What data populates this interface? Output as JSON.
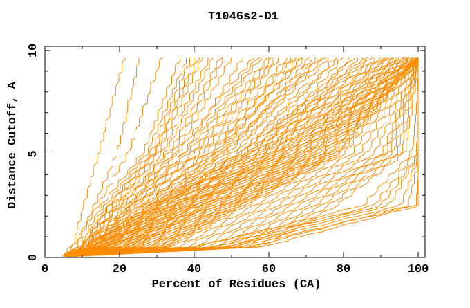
{
  "window": {
    "background": "#ffffff",
    "frame_color": "#000000",
    "text_color": "#000000"
  },
  "chart_data": {
    "type": "line",
    "title": "T1046s2-D1",
    "xlabel": "Percent of Residues (CA)",
    "ylabel": "Distance Cutoff, A",
    "xlim": [
      0,
      101.85
    ],
    "ylim": [
      0,
      10.2
    ],
    "x_ticks_major": [
      0,
      20,
      40,
      60,
      80,
      100
    ],
    "x_ticks_minor": [
      10,
      30,
      50,
      70,
      90
    ],
    "y_ticks_major": [
      0,
      5,
      10
    ],
    "y_ticks_minor": [
      1,
      2,
      3,
      4,
      6,
      7,
      8,
      9
    ],
    "grid": false,
    "legend": "none",
    "line_color": "#ff8c00",
    "curve_count": 96,
    "max_cutoff_sampled": 9.7,
    "curve_anchor_cutoffs": [
      0.05,
      0.5,
      2.5,
      5,
      9.7
    ],
    "curves": [
      [
        4.5,
        7,
        10,
        14,
        21
      ],
      [
        5,
        8,
        13,
        19,
        25
      ],
      [
        4.5,
        7.5,
        14,
        22,
        31
      ],
      [
        5,
        9,
        15,
        26,
        36
      ],
      [
        5.5,
        10,
        17,
        28,
        39
      ],
      [
        6,
        11,
        19,
        30,
        42
      ],
      [
        5,
        9.5,
        16,
        27,
        38
      ],
      [
        6,
        12,
        21,
        32,
        45
      ],
      [
        5.5,
        10.5,
        18,
        29,
        41
      ],
      [
        6.5,
        13,
        23,
        34,
        48
      ],
      [
        5,
        11,
        20,
        33,
        47
      ],
      [
        6,
        12.5,
        22,
        35,
        50
      ],
      [
        5.5,
        11.5,
        19,
        31,
        44
      ],
      [
        6,
        13,
        24,
        37,
        53
      ],
      [
        5,
        10,
        17,
        29,
        40
      ],
      [
        5,
        10,
        20,
        35,
        56
      ],
      [
        5.5,
        12,
        23,
        38,
        58
      ],
      [
        6,
        14,
        26,
        40,
        61
      ],
      [
        5,
        11,
        22,
        37,
        57
      ],
      [
        6.5,
        15,
        28,
        42,
        63
      ],
      [
        5.5,
        13,
        25,
        39,
        60
      ],
      [
        6,
        16,
        30,
        45,
        66
      ],
      [
        5,
        12,
        24,
        41,
        62
      ],
      [
        7,
        17,
        32,
        47,
        68
      ],
      [
        5.5,
        14,
        27,
        43,
        65
      ],
      [
        6,
        18,
        34,
        49,
        71
      ],
      [
        5,
        13,
        26,
        44,
        67
      ],
      [
        6.5,
        19,
        35,
        51,
        73
      ],
      [
        5.5,
        15,
        29,
        46,
        69
      ],
      [
        6,
        20,
        37,
        53,
        76
      ],
      [
        5,
        14,
        28,
        45,
        70
      ],
      [
        7,
        21,
        39,
        55,
        78
      ],
      [
        5.5,
        16,
        31,
        48,
        72
      ],
      [
        6,
        22,
        40,
        57,
        80
      ],
      [
        5,
        15,
        30,
        47,
        74
      ],
      [
        6.5,
        23,
        42,
        59,
        82
      ],
      [
        5.5,
        17,
        33,
        50,
        75
      ],
      [
        6,
        24,
        43,
        61,
        84
      ],
      [
        5,
        16,
        32,
        52,
        79
      ],
      [
        6.5,
        18,
        36,
        54,
        83
      ],
      [
        5,
        10,
        28,
        52,
        86
      ],
      [
        5.5,
        12,
        30,
        55,
        88
      ],
      [
        6,
        14,
        33,
        58,
        90
      ],
      [
        5,
        11,
        29,
        54,
        87
      ],
      [
        6.5,
        16,
        35,
        60,
        92
      ],
      [
        5.5,
        13,
        31,
        56,
        89
      ],
      [
        6,
        18,
        38,
        62,
        94
      ],
      [
        5,
        12,
        30,
        57,
        91
      ],
      [
        7,
        20,
        40,
        64,
        95
      ],
      [
        5.5,
        15,
        34,
        61,
        93
      ],
      [
        6,
        22,
        42,
        66,
        96
      ],
      [
        5,
        14,
        32,
        59,
        92
      ],
      [
        6.5,
        24,
        44,
        68,
        97
      ],
      [
        5.5,
        17,
        36,
        63,
        94
      ],
      [
        6,
        26,
        46,
        70,
        98
      ],
      [
        5,
        16,
        35,
        62,
        95
      ],
      [
        7,
        28,
        48,
        72,
        99
      ],
      [
        5.5,
        19,
        38,
        65,
        96
      ],
      [
        6,
        30,
        50,
        74,
        100
      ],
      [
        5,
        18,
        37,
        64,
        97
      ],
      [
        6.5,
        32,
        52,
        76,
        100
      ],
      [
        5.5,
        21,
        40,
        67,
        98
      ],
      [
        6,
        34,
        54,
        78,
        100
      ],
      [
        5,
        20,
        39,
        66,
        99
      ],
      [
        7,
        36,
        56,
        80,
        100
      ],
      [
        5.5,
        23,
        43,
        69,
        98
      ],
      [
        6,
        38,
        58,
        82,
        100
      ],
      [
        5,
        22,
        41,
        68,
        99
      ],
      [
        6.5,
        40,
        60,
        84,
        100
      ],
      [
        5.5,
        25,
        45,
        71,
        99
      ],
      [
        6,
        42,
        62,
        86,
        100
      ],
      [
        5,
        24,
        44,
        70,
        100
      ],
      [
        7,
        44,
        64,
        88,
        100
      ],
      [
        5.5,
        27,
        47,
        73,
        100
      ],
      [
        6,
        46,
        66,
        90,
        100
      ],
      [
        5,
        26,
        46,
        72,
        100
      ],
      [
        6.5,
        48,
        68,
        91,
        100
      ],
      [
        5.5,
        29,
        49,
        75,
        100
      ],
      [
        6,
        50,
        70,
        92,
        100
      ],
      [
        5,
        28,
        48,
        74,
        100
      ],
      [
        7,
        52,
        72,
        93,
        100
      ],
      [
        5.5,
        31,
        51,
        77,
        100
      ],
      [
        6,
        54,
        74,
        94,
        100
      ],
      [
        5,
        30,
        50,
        76,
        100
      ],
      [
        6.5,
        56,
        76,
        95,
        100
      ],
      [
        5.5,
        33,
        53,
        79,
        100
      ],
      [
        6,
        58,
        78,
        96,
        100
      ],
      [
        5,
        32,
        52,
        78,
        100
      ],
      [
        6,
        40,
        85,
        98,
        100
      ],
      [
        7,
        45,
        90,
        100,
        100
      ],
      [
        6,
        50,
        95,
        100,
        100
      ],
      [
        8,
        55,
        97,
        100,
        100
      ],
      [
        7,
        48,
        92,
        100,
        100
      ],
      [
        6,
        52,
        99,
        100,
        100
      ],
      [
        7,
        58,
        100,
        100,
        100
      ],
      [
        6,
        44,
        88,
        99,
        100
      ]
    ]
  }
}
